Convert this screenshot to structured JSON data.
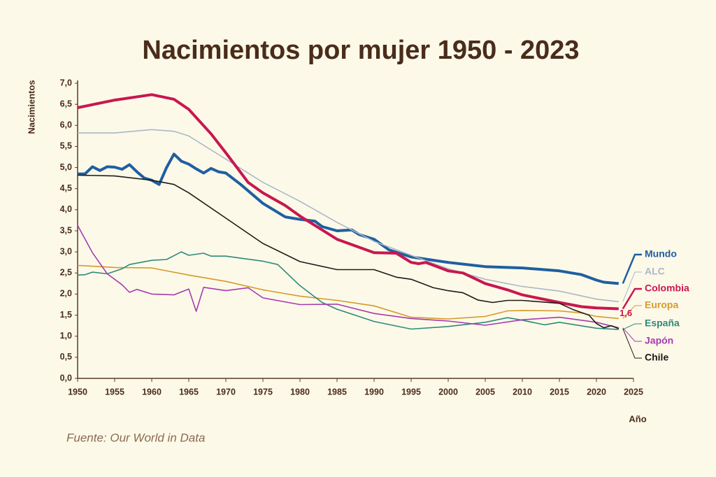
{
  "chart_data": {
    "type": "line",
    "title": "Nacimientos por mujer 1950 - 2023",
    "y_label": "Nacimientos",
    "x_label": "Año",
    "source": "Fuente: Our World in Data",
    "xlim": [
      1950,
      2025
    ],
    "xticks": [
      1950,
      1955,
      1960,
      1965,
      1970,
      1975,
      1980,
      1985,
      1990,
      1995,
      2000,
      2005,
      2010,
      2015,
      2020,
      2025
    ],
    "ylim": [
      0,
      7
    ],
    "yticks": [
      {
        "value": 0,
        "label": "0,0"
      },
      {
        "value": 0.5,
        "label": "0,5"
      },
      {
        "value": 1,
        "label": "1,0"
      },
      {
        "value": 1.5,
        "label": "1,5"
      },
      {
        "value": 2,
        "label": "2,0"
      },
      {
        "value": 2.5,
        "label": "2,5"
      },
      {
        "value": 3,
        "label": "3,0"
      },
      {
        "value": 3.5,
        "label": "3,5"
      },
      {
        "value": 4,
        "label": "4,0"
      },
      {
        "value": 4.5,
        "label": "4,5"
      },
      {
        "value": 5,
        "label": "5,0"
      },
      {
        "value": 5.5,
        "label": "5,5"
      },
      {
        "value": 6,
        "label": "6,0"
      },
      {
        "value": 6.5,
        "label": "6,5"
      },
      {
        "value": 7,
        "label": "7,0"
      }
    ],
    "annotations": [
      {
        "text": "1,6",
        "value": 1.6,
        "series": "Colombia"
      }
    ],
    "series": [
      {
        "name": "Mundo",
        "color": "#1f5fa0",
        "width": 4,
        "x": [
          1950,
          1951,
          1952,
          1953,
          1954,
          1955,
          1956,
          1957,
          1958,
          1959,
          1960,
          1961,
          1962,
          1963,
          1964,
          1965,
          1966,
          1967,
          1968,
          1969,
          1970,
          1972,
          1975,
          1978,
          1980,
          1982,
          1983,
          1985,
          1987,
          1988,
          1990,
          1992,
          1995,
          2000,
          2005,
          2010,
          2015,
          2018,
          2020,
          2021,
          2023
        ],
        "values": [
          4.85,
          4.85,
          5.02,
          4.93,
          5.02,
          5.01,
          4.96,
          5.07,
          4.9,
          4.75,
          4.7,
          4.6,
          5.0,
          5.32,
          5.15,
          5.08,
          4.97,
          4.87,
          4.98,
          4.9,
          4.87,
          4.6,
          4.15,
          3.83,
          3.77,
          3.73,
          3.6,
          3.5,
          3.52,
          3.41,
          3.3,
          3.05,
          2.88,
          2.75,
          2.65,
          2.62,
          2.55,
          2.46,
          2.33,
          2.28,
          2.25
        ]
      },
      {
        "name": "ALC",
        "color": "#aab8c8",
        "width": 1.6,
        "x": [
          1950,
          1955,
          1960,
          1963,
          1965,
          1970,
          1975,
          1980,
          1985,
          1990,
          1995,
          2000,
          2005,
          2010,
          2015,
          2020,
          2023
        ],
        "values": [
          5.82,
          5.82,
          5.9,
          5.86,
          5.75,
          5.2,
          4.65,
          4.2,
          3.7,
          3.25,
          2.92,
          2.6,
          2.35,
          2.18,
          2.07,
          1.88,
          1.82
        ]
      },
      {
        "name": "Colombia",
        "color": "#c8174f",
        "width": 4,
        "x": [
          1950,
          1955,
          1960,
          1963,
          1965,
          1968,
          1970,
          1973,
          1975,
          1978,
          1980,
          1985,
          1990,
          1993,
          1995,
          1996,
          1997,
          2000,
          2002,
          2005,
          2008,
          2010,
          2015,
          2018,
          2020,
          2023
        ],
        "values": [
          6.42,
          6.6,
          6.73,
          6.62,
          6.38,
          5.8,
          5.35,
          4.65,
          4.4,
          4.1,
          3.85,
          3.3,
          2.98,
          2.97,
          2.75,
          2.72,
          2.75,
          2.55,
          2.5,
          2.25,
          2.1,
          1.98,
          1.8,
          1.7,
          1.67,
          1.65
        ]
      },
      {
        "name": "Europa",
        "color": "#d49a2a",
        "width": 1.6,
        "x": [
          1950,
          1955,
          1960,
          1965,
          1970,
          1975,
          1980,
          1985,
          1990,
          1995,
          2000,
          2005,
          2008,
          2010,
          2015,
          2018,
          2020,
          2023
        ],
        "values": [
          2.68,
          2.63,
          2.62,
          2.45,
          2.3,
          2.1,
          1.95,
          1.85,
          1.72,
          1.45,
          1.41,
          1.47,
          1.6,
          1.61,
          1.6,
          1.55,
          1.47,
          1.42
        ]
      },
      {
        "name": "España",
        "color": "#2e8a7a",
        "width": 1.6,
        "x": [
          1950,
          1951,
          1952,
          1954,
          1956,
          1957,
          1960,
          1962,
          1964,
          1965,
          1967,
          1968,
          1970,
          1975,
          1977,
          1980,
          1983,
          1985,
          1990,
          1995,
          2000,
          2005,
          2008,
          2010,
          2013,
          2015,
          2020,
          2023
        ],
        "values": [
          2.45,
          2.46,
          2.52,
          2.48,
          2.6,
          2.7,
          2.8,
          2.82,
          3.0,
          2.92,
          2.97,
          2.9,
          2.9,
          2.78,
          2.7,
          2.2,
          1.8,
          1.64,
          1.35,
          1.17,
          1.23,
          1.33,
          1.44,
          1.38,
          1.27,
          1.33,
          1.19,
          1.16
        ]
      },
      {
        "name": "Japón",
        "color": "#a53cb0",
        "width": 1.6,
        "x": [
          1950,
          1952,
          1954,
          1956,
          1957,
          1958,
          1960,
          1963,
          1965,
          1966,
          1967,
          1970,
          1973,
          1975,
          1980,
          1985,
          1990,
          1995,
          2000,
          2005,
          2010,
          2015,
          2020,
          2023
        ],
        "values": [
          3.63,
          2.98,
          2.48,
          2.22,
          2.04,
          2.11,
          2.0,
          1.98,
          2.12,
          1.59,
          2.16,
          2.08,
          2.15,
          1.91,
          1.75,
          1.76,
          1.54,
          1.42,
          1.36,
          1.26,
          1.39,
          1.45,
          1.33,
          1.2
        ]
      },
      {
        "name": "Chile",
        "color": "#1e1a16",
        "width": 1.6,
        "x": [
          1950,
          1955,
          1960,
          1963,
          1965,
          1970,
          1975,
          1980,
          1985,
          1990,
          1993,
          1995,
          1998,
          2000,
          2002,
          2004,
          2006,
          2008,
          2010,
          2015,
          2017,
          2019,
          2020,
          2021,
          2022,
          2023
        ],
        "values": [
          4.82,
          4.8,
          4.7,
          4.6,
          4.4,
          3.8,
          3.2,
          2.77,
          2.58,
          2.58,
          2.4,
          2.35,
          2.15,
          2.08,
          2.03,
          1.86,
          1.8,
          1.85,
          1.85,
          1.78,
          1.62,
          1.5,
          1.3,
          1.2,
          1.25,
          1.18
        ]
      }
    ]
  }
}
